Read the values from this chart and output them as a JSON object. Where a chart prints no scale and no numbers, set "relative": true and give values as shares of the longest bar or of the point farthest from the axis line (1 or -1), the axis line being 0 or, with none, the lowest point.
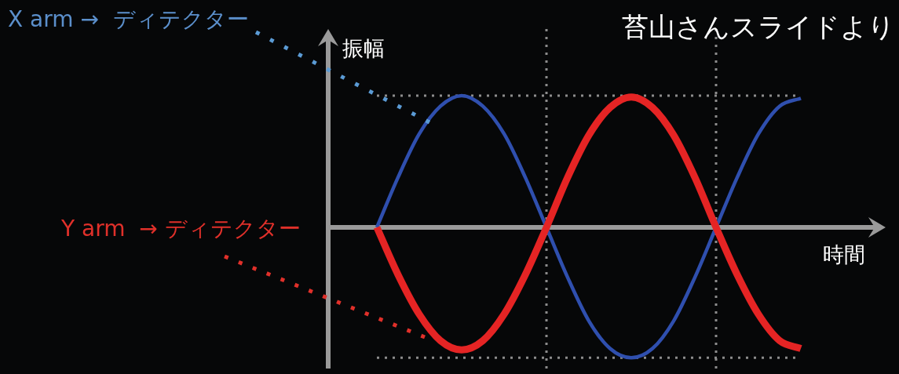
{
  "chart_data": {
    "type": "line",
    "relative": true,
    "xlabel": "時間",
    "ylabel": "振幅",
    "categories": [
      null,
      null,
      null,
      null,
      null,
      null,
      null,
      null,
      null,
      null,
      null,
      null,
      null,
      null,
      null,
      null,
      null,
      null,
      null,
      null,
      null
    ],
    "series": [
      {
        "color": "#2f4fae",
        "values": [
          0,
          0.38,
          0.71,
          0.92,
          1,
          0.92,
          0.71,
          0.38,
          0,
          -0.38,
          -0.71,
          -0.92,
          -0.99,
          -0.92,
          -0.71,
          -0.38,
          0,
          0.38,
          0.71,
          0.92,
          0.98
        ]
      },
      {
        "color": "#e52424",
        "values": [
          0,
          -0.36,
          -0.66,
          -0.86,
          -0.93,
          -0.86,
          -0.66,
          -0.36,
          0,
          0.38,
          0.7,
          0.91,
          0.99,
          0.91,
          0.7,
          0.38,
          0,
          -0.36,
          -0.66,
          -0.86,
          -0.92
        ]
      }
    ],
    "annotations": [
      "X arm →  ディテクター",
      "Y arm  → ディテクター",
      "苔山さんスライドより"
    ]
  }
}
